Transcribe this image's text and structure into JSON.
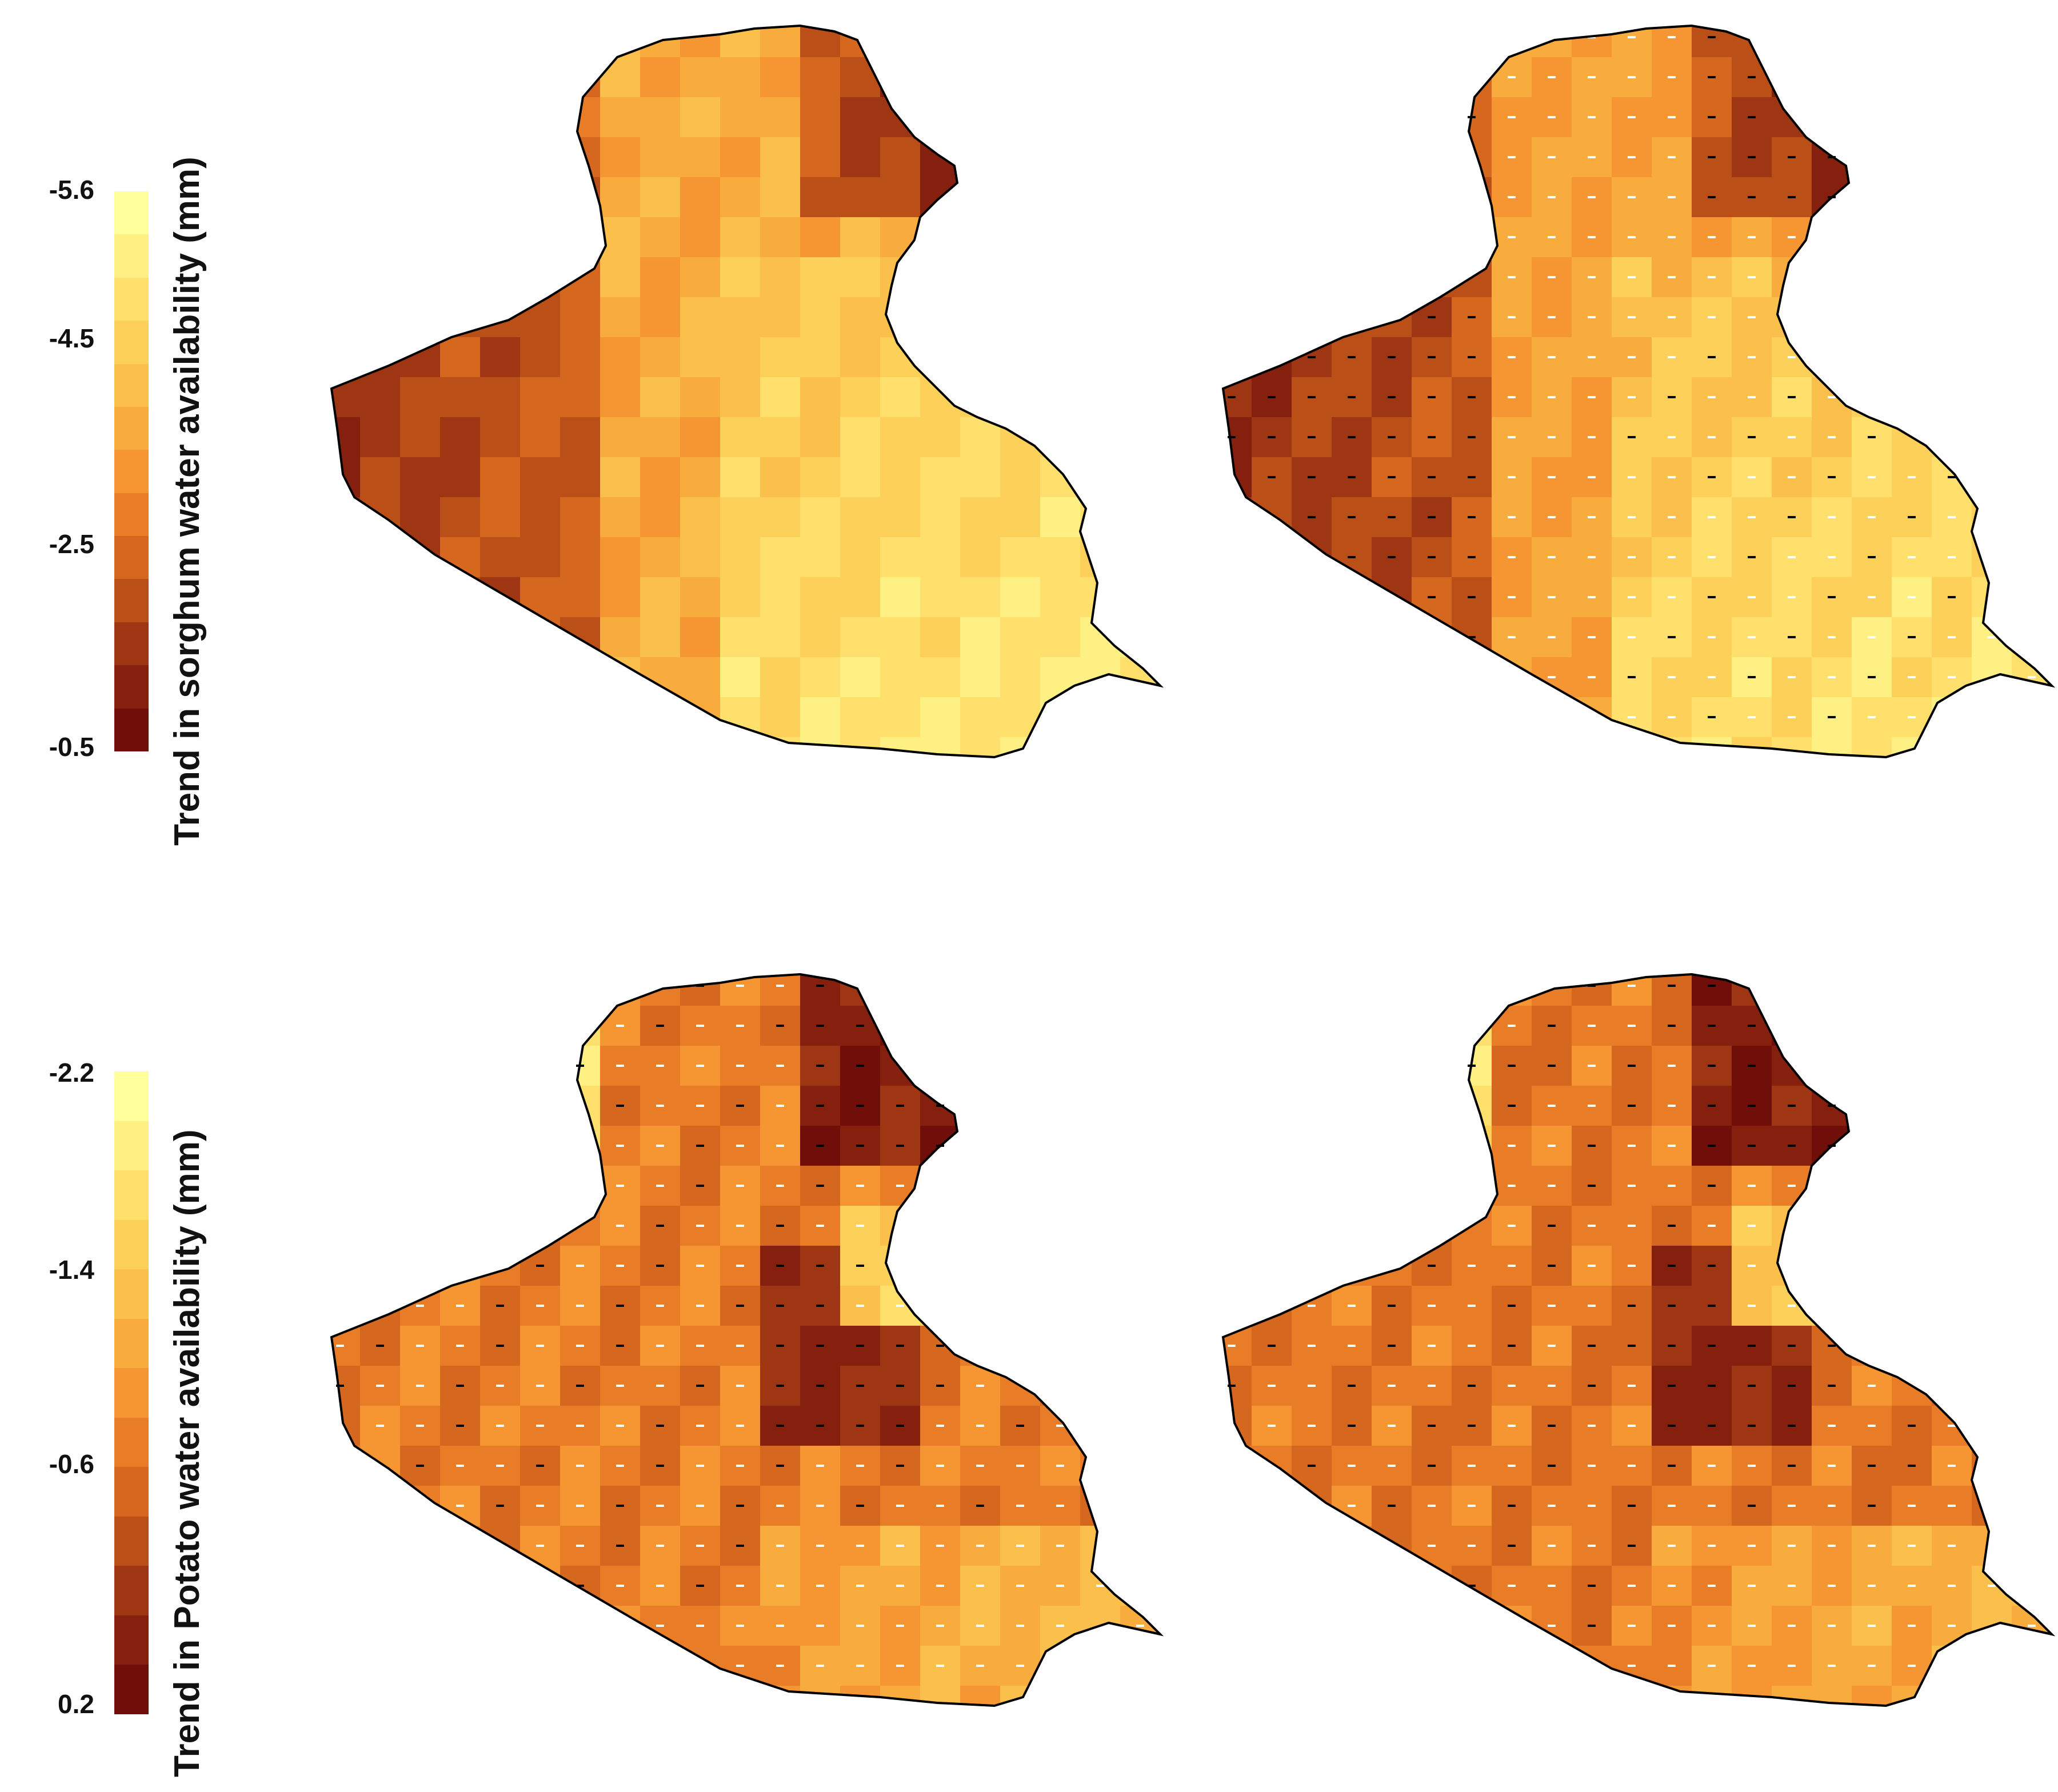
{
  "figure": {
    "legends": [
      {
        "id": "sorghum",
        "title": "Trend in sorghum water availability (mm)",
        "tick_labels": [
          "-5.6",
          "-4.5",
          "-2.5",
          "-0.5"
        ],
        "colors": [
          "#ffff9c",
          "#fff083",
          "#ffe06c",
          "#fdd05a",
          "#fbbf4b",
          "#f9ac3e",
          "#f59632",
          "#e97d27",
          "#d5671f",
          "#bb4f18",
          "#9f3613",
          "#85200f",
          "#700f0a"
        ]
      },
      {
        "id": "potato",
        "title": "Trend in Potato water availability (mm)",
        "tick_labels": [
          "-2.2",
          "-1.4",
          "-0.6",
          "0.2"
        ],
        "colors": [
          "#ffff9c",
          "#fff083",
          "#ffe06c",
          "#fdd05a",
          "#fbbf4b",
          "#f9ac3e",
          "#f59632",
          "#e97d27",
          "#d5671f",
          "#bb4f18",
          "#9f3613",
          "#85200f",
          "#700f0a"
        ]
      }
    ],
    "panels": [
      {
        "id": "sorghum-left",
        "variable": "sorghum",
        "pattern": "sorghum_a"
      },
      {
        "id": "sorghum-right",
        "variable": "sorghum",
        "pattern": "sorghum_b"
      },
      {
        "id": "potato-left",
        "variable": "potato",
        "pattern": "potato_a"
      },
      {
        "id": "potato-right",
        "variable": "potato",
        "pattern": "potato_b"
      }
    ],
    "notes": {
      "significance_markers": "white and black dash markers indicate significance of trend at grid cells"
    }
  }
}
